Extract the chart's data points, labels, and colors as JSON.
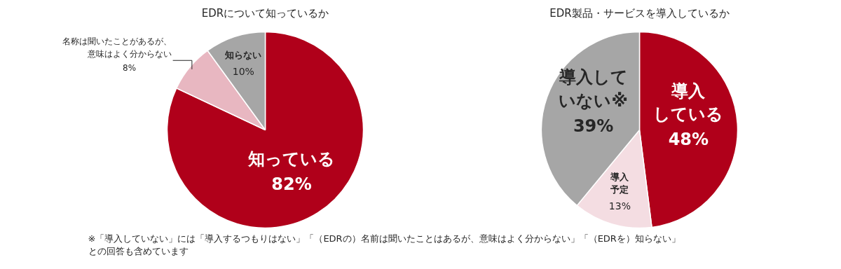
{
  "chart_data": [
    {
      "type": "pie",
      "title": "EDRについて知っているか",
      "categories": [
        "知っている",
        "名称は聞いたことがあるが、意味はよく分からない",
        "知らない"
      ],
      "values": [
        82,
        8,
        10
      ],
      "value_labels": [
        "82%",
        "8%",
        "10%"
      ],
      "colors": [
        "#b0001a",
        "#e8b7c1",
        "#a6a6a6"
      ]
    },
    {
      "type": "pie",
      "title": "EDR製品・サービスを導入しているか",
      "categories": [
        "導入している",
        "導入予定",
        "導入していない※"
      ],
      "values": [
        48,
        13,
        39
      ],
      "value_labels": [
        "48%",
        "13%",
        "39%"
      ],
      "colors": [
        "#b0001a",
        "#f4dde2",
        "#a6a6a6"
      ],
      "annotations": [
        "※「導入していない」には「導入するつもりはない」「（EDRの）名前は聞いたことはあるが、意味はよく分からない」「（EDRを）知らない」との回答も含めています"
      ]
    }
  ]
}
